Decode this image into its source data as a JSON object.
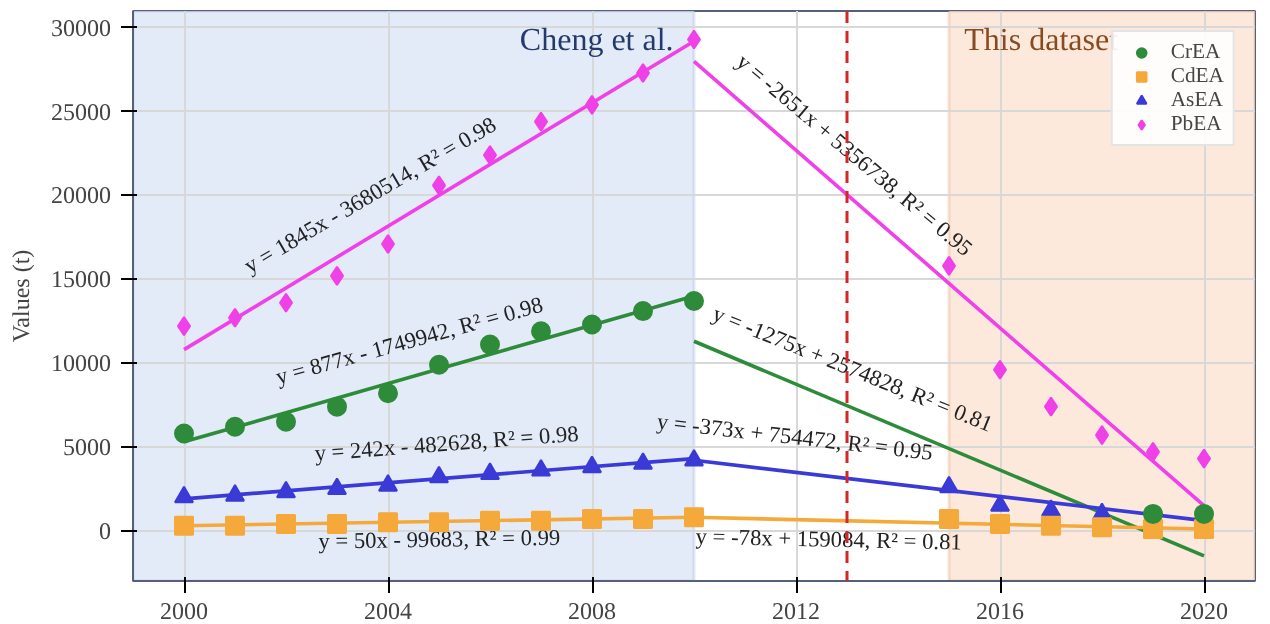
{
  "chart_data": {
    "type": "scatter",
    "ylabel": "Values (t)",
    "x": [
      2000,
      2001,
      2002,
      2003,
      2004,
      2005,
      2006,
      2007,
      2008,
      2009,
      2010,
      2015,
      2016,
      2017,
      2018,
      2019,
      2020
    ],
    "series": [
      {
        "name": "CrEA",
        "color": "#2e8b3a",
        "marker": "circle",
        "values": [
          5800,
          6200,
          6500,
          7400,
          8200,
          9900,
          11100,
          11900,
          12300,
          13100,
          13700,
          null,
          null,
          null,
          null,
          1000,
          1000
        ]
      },
      {
        "name": "CdEA",
        "color": "#f5a93a",
        "marker": "square",
        "values": [
          300,
          300,
          400,
          400,
          500,
          500,
          600,
          600,
          700,
          700,
          800,
          700,
          400,
          300,
          200,
          100,
          100
        ]
      },
      {
        "name": "AsEA",
        "color": "#3a3ad6",
        "marker": "triangle",
        "values": [
          2000,
          2100,
          2300,
          2500,
          2700,
          3200,
          3400,
          3600,
          3800,
          4000,
          4200,
          2600,
          1500,
          1200,
          1000,
          null,
          null
        ]
      },
      {
        "name": "PbEA",
        "color": "#f040e8",
        "marker": "diamond",
        "values": [
          12200,
          12700,
          13600,
          15200,
          17100,
          20600,
          22400,
          24400,
          25400,
          27300,
          29300,
          15800,
          9600,
          7400,
          5700,
          4700,
          4300
        ]
      },
      {
        "type": "line",
        "color": "#f040e8",
        "x": [
          2000,
          2010
        ],
        "values": [
          10800,
          29200
        ]
      },
      {
        "type": "line",
        "color": "#2e8b3a",
        "x": [
          2000,
          2010
        ],
        "values": [
          5300,
          14000
        ]
      },
      {
        "type": "line",
        "color": "#3a3ad6",
        "x": [
          2000,
          2010
        ],
        "values": [
          1900,
          4300
        ]
      },
      {
        "type": "line",
        "color": "#f5a93a",
        "x": [
          2000,
          2010
        ],
        "values": [
          300,
          800
        ]
      },
      {
        "type": "line",
        "color": "#f040e8",
        "x": [
          2010,
          2020
        ],
        "values": [
          28000,
          1500
        ]
      },
      {
        "type": "line",
        "color": "#2e8b3a",
        "x": [
          2010,
          2020
        ],
        "values": [
          11300,
          -1500
        ]
      },
      {
        "type": "line",
        "color": "#3a3ad6",
        "x": [
          2010,
          2020
        ],
        "values": [
          4200,
          600
        ]
      },
      {
        "type": "line",
        "color": "#f5a93a",
        "x": [
          2010,
          2020
        ],
        "values": [
          800,
          100
        ]
      }
    ],
    "annotations": [
      {
        "text": "y = 1845x - 3680514, R² = 0.98",
        "x": 2004.0,
        "y": 18200
      },
      {
        "text": "y = 877x - 1749942, R² = 0.98",
        "x": 2004.6,
        "y": 9300
      },
      {
        "text": "y = 242x - 482628, R² = 0.98",
        "x": 2005.2,
        "y": 3100
      },
      {
        "text": "y = 50x - 99683, R² = 0.99",
        "x": 2005.0,
        "y": 600
      },
      {
        "text": "y = -2651x + 5356738, R² = 0.95",
        "x": 2012.7,
        "y": 20800
      },
      {
        "text": "y = -1275x + 2574828, R² = 0.81",
        "x": 2012.85,
        "y": 7700
      },
      {
        "text": "y = -373x + 754472, R² = 0.95",
        "x": 2011.9,
        "y": 3500
      },
      {
        "text": "y = -78x + 159084, R² = 0.81",
        "x": 2012.65,
        "y": 600
      }
    ],
    "bands": [
      {
        "axis": "x",
        "from": 1999,
        "to": 2010,
        "label": "Cheng et al.",
        "color": "#dce6f7"
      },
      {
        "axis": "x",
        "from": 2015,
        "to": 2021,
        "label": "This dataset",
        "color": "#fbe4d2"
      }
    ],
    "ref_lines": [
      {
        "axis": "x",
        "value": 2013,
        "color": "#d62728",
        "line_style": "dashed"
      }
    ],
    "xlim": [
      1999,
      2021
    ],
    "ylim": [
      -3000,
      31000
    ],
    "xticks": [
      2000,
      2004,
      2008,
      2012,
      2016,
      2020
    ],
    "yticks": [
      0,
      5000,
      10000,
      15000,
      20000,
      25000,
      30000
    ],
    "grid": true,
    "legend": "top right"
  }
}
